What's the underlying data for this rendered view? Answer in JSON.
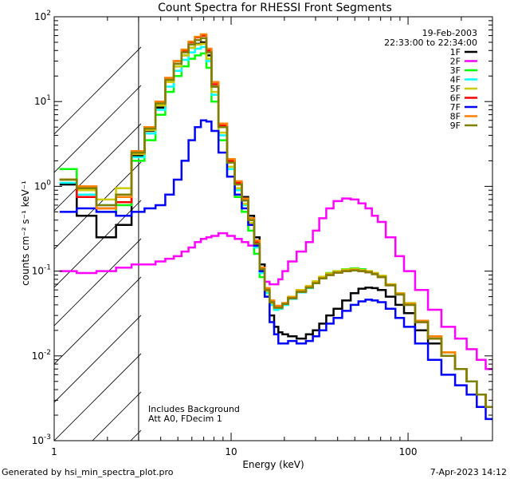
{
  "chart_data": {
    "type": "line",
    "title": "Count Spectra for RHESSI Front Segments",
    "xlabel": "Energy (keV)",
    "ylabel": "counts cm⁻² s⁻¹ keV⁻¹",
    "xscale": "log",
    "yscale": "log",
    "xlim": [
      1.0,
      300.0
    ],
    "ylim": [
      0.001,
      100.0
    ],
    "x_ticks": [
      {
        "value": 1,
        "label": "1"
      },
      {
        "value": 10,
        "label": "10"
      },
      {
        "value": 100,
        "label": "100"
      }
    ],
    "y_ticks": [
      {
        "value": 0.001,
        "base": "10",
        "exp": "-3"
      },
      {
        "value": 0.01,
        "base": "10",
        "exp": "-2"
      },
      {
        "value": 0.1,
        "base": "10",
        "exp": "-1"
      },
      {
        "value": 1,
        "base": "10",
        "exp": "0"
      },
      {
        "value": 10,
        "base": "10",
        "exp": "1"
      },
      {
        "value": 100,
        "base": "10",
        "exp": "2"
      }
    ],
    "date": "19-Feb-2003",
    "time_range": "22:33:00 to 22:34:00",
    "background_region": {
      "x_end": 3.0,
      "description": "hatched region below 3 keV"
    },
    "annotations": [
      "Includes Background",
      "Att A0, FDecim 1"
    ],
    "footer_left": "Generated by hsi_min_spectra_plot.pro",
    "footer_right": "7-Apr-2023 14:12",
    "x": [
      1.2,
      1.5,
      2.0,
      2.5,
      3.0,
      3.5,
      4.0,
      4.5,
      5.0,
      5.5,
      6.0,
      6.5,
      7.0,
      7.5,
      8.0,
      9.0,
      10.0,
      11.0,
      12.0,
      13.0,
      14.0,
      15.0,
      16.0,
      17.0,
      18.0,
      19.0,
      20.0,
      22.0,
      25.0,
      28.0,
      30.0,
      33.0,
      36.0,
      40.0,
      45.0,
      50.0,
      55.0,
      60.0,
      65.0,
      70.0,
      80.0,
      90.0,
      100.0,
      120.0,
      140.0,
      170.0,
      200.0,
      230.0,
      260.0,
      290.0
    ],
    "series": [
      {
        "name": "1F",
        "color": "#000000",
        "values": [
          1.05,
          0.45,
          0.25,
          0.35,
          2.3,
          4.5,
          8.5,
          17,
          26,
          35,
          43,
          48,
          50,
          35,
          15,
          5,
          2.0,
          1.1,
          0.75,
          0.45,
          0.25,
          0.12,
          0.06,
          0.03,
          0.022,
          0.019,
          0.018,
          0.017,
          0.016,
          0.018,
          0.02,
          0.024,
          0.03,
          0.036,
          0.045,
          0.055,
          0.062,
          0.064,
          0.063,
          0.06,
          0.05,
          0.04,
          0.032,
          0.02,
          0.014,
          0.01,
          0.007,
          0.005,
          0.0035,
          0.0025
        ]
      },
      {
        "name": "2F",
        "color": "#ff00ff",
        "values": [
          0.1,
          0.095,
          0.1,
          0.11,
          0.12,
          0.12,
          0.13,
          0.14,
          0.15,
          0.17,
          0.19,
          0.22,
          0.24,
          0.25,
          0.26,
          0.28,
          0.26,
          0.24,
          0.22,
          0.2,
          0.16,
          0.11,
          0.075,
          0.07,
          0.07,
          0.08,
          0.1,
          0.13,
          0.17,
          0.22,
          0.3,
          0.42,
          0.55,
          0.67,
          0.72,
          0.7,
          0.63,
          0.55,
          0.45,
          0.38,
          0.25,
          0.15,
          0.1,
          0.06,
          0.035,
          0.022,
          0.016,
          0.012,
          0.009,
          0.007
        ]
      },
      {
        "name": "3F",
        "color": "#00ff00",
        "values": [
          1.6,
          0.9,
          0.5,
          0.6,
          2.0,
          3.5,
          7,
          13,
          20,
          26,
          32,
          35,
          37,
          25,
          10,
          3.5,
          1.3,
          0.75,
          0.5,
          0.3,
          0.16,
          0.085,
          0.05,
          0.04,
          0.035,
          0.036,
          0.04,
          0.048,
          0.058,
          0.065,
          0.075,
          0.085,
          0.095,
          0.1,
          0.105,
          0.108,
          0.105,
          0.1,
          0.095,
          0.088,
          0.07,
          0.055,
          0.042,
          0.026,
          0.017,
          0.011,
          0.007,
          0.005,
          0.0035,
          0.0025
        ]
      },
      {
        "name": "4F",
        "color": "#00ffff",
        "values": [
          1.1,
          0.8,
          0.6,
          0.8,
          2.2,
          4.2,
          8,
          15,
          23,
          31,
          38,
          42,
          44,
          30,
          12,
          4,
          1.6,
          0.9,
          0.6,
          0.35,
          0.19,
          0.095,
          0.055,
          0.04,
          0.035,
          0.036,
          0.04,
          0.047,
          0.056,
          0.063,
          0.072,
          0.082,
          0.09,
          0.097,
          0.1,
          0.103,
          0.1,
          0.097,
          0.092,
          0.085,
          0.068,
          0.053,
          0.04,
          0.025,
          0.016,
          0.01,
          0.007,
          0.005,
          0.0035,
          0.0025
        ]
      },
      {
        "name": "5F",
        "color": "#cccc00",
        "values": [
          1.2,
          0.9,
          0.7,
          0.95,
          2.4,
          4.6,
          9,
          17,
          26,
          35,
          43,
          47,
          48,
          32,
          13,
          4.3,
          1.7,
          0.95,
          0.62,
          0.37,
          0.2,
          0.1,
          0.058,
          0.042,
          0.037,
          0.038,
          0.042,
          0.05,
          0.06,
          0.067,
          0.076,
          0.086,
          0.094,
          0.1,
          0.104,
          0.106,
          0.103,
          0.1,
          0.095,
          0.088,
          0.07,
          0.055,
          0.042,
          0.026,
          0.017,
          0.011,
          0.007,
          0.005,
          0.0035,
          0.0025
        ]
      },
      {
        "name": "6F",
        "color": "#ff0000",
        "values": [
          1.2,
          0.75,
          0.55,
          0.65,
          2.5,
          5,
          10,
          19,
          30,
          40,
          50,
          57,
          60,
          40,
          16,
          5.2,
          2.0,
          1.1,
          0.7,
          0.4,
          0.22,
          0.11,
          0.062,
          0.044,
          0.038,
          0.038,
          0.041,
          0.048,
          0.057,
          0.064,
          0.072,
          0.082,
          0.09,
          0.096,
          0.1,
          0.102,
          0.1,
          0.097,
          0.092,
          0.085,
          0.068,
          0.053,
          0.04,
          0.025,
          0.016,
          0.01,
          0.007,
          0.005,
          0.0035,
          0.0025
        ]
      },
      {
        "name": "7F",
        "color": "#0000ff",
        "values": [
          0.5,
          0.55,
          0.5,
          0.45,
          0.5,
          0.55,
          0.6,
          0.8,
          1.2,
          2.0,
          3.5,
          5.0,
          6.0,
          5.8,
          4.5,
          2.5,
          1.3,
          0.8,
          0.55,
          0.35,
          0.2,
          0.1,
          0.05,
          0.025,
          0.018,
          0.014,
          0.014,
          0.015,
          0.014,
          0.015,
          0.017,
          0.02,
          0.024,
          0.028,
          0.034,
          0.04,
          0.044,
          0.046,
          0.045,
          0.043,
          0.036,
          0.028,
          0.022,
          0.014,
          0.009,
          0.006,
          0.0045,
          0.0035,
          0.0025,
          0.0018
        ]
      },
      {
        "name": "8F",
        "color": "#ff8000",
        "values": [
          1.2,
          1.0,
          0.55,
          0.75,
          2.6,
          5,
          10,
          19,
          30,
          41,
          51,
          58,
          62,
          42,
          17,
          5.5,
          2.1,
          1.15,
          0.72,
          0.42,
          0.23,
          0.11,
          0.063,
          0.045,
          0.039,
          0.039,
          0.042,
          0.049,
          0.058,
          0.065,
          0.073,
          0.083,
          0.091,
          0.097,
          0.101,
          0.103,
          0.101,
          0.098,
          0.093,
          0.086,
          0.069,
          0.054,
          0.041,
          0.026,
          0.017,
          0.011,
          0.007,
          0.005,
          0.0035,
          0.0025
        ]
      },
      {
        "name": "9F",
        "color": "#808000",
        "values": [
          1.2,
          0.95,
          0.6,
          0.8,
          2.5,
          4.8,
          9.5,
          18,
          28,
          38,
          47,
          53,
          56,
          38,
          15,
          5,
          1.9,
          1.05,
          0.68,
          0.4,
          0.21,
          0.105,
          0.06,
          0.043,
          0.037,
          0.037,
          0.041,
          0.048,
          0.057,
          0.064,
          0.072,
          0.082,
          0.09,
          0.096,
          0.1,
          0.102,
          0.1,
          0.097,
          0.092,
          0.085,
          0.068,
          0.053,
          0.04,
          0.025,
          0.016,
          0.01,
          0.007,
          0.005,
          0.0035,
          0.0025
        ]
      }
    ]
  }
}
